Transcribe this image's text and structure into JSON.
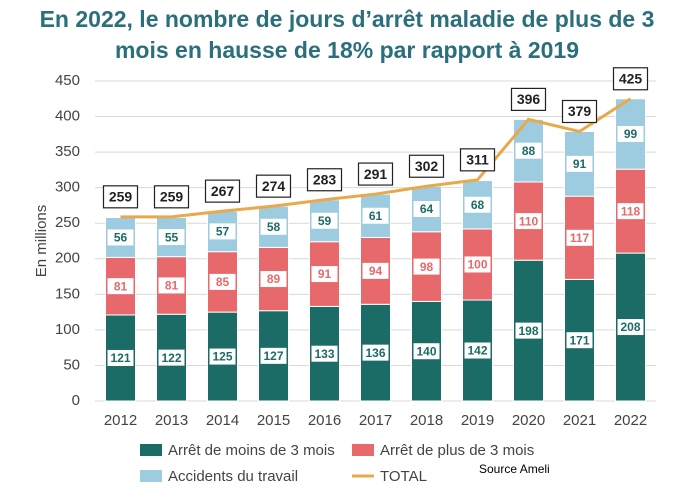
{
  "chart_data": {
    "type": "bar",
    "stacked": true,
    "title": "En 2022, le nombre de jours d’arrêt maladie de plus de 3 mois en hausse de 18% par rapport à 2019",
    "y_label": "En millions",
    "source": "Source Ameli",
    "categories": [
      "2012",
      "2013",
      "2014",
      "2015",
      "2016",
      "2017",
      "2018",
      "2019",
      "2020",
      "2021",
      "2022"
    ],
    "series": [
      {
        "name": "Arrêt de moins de 3 mois",
        "color": "#1b6b67",
        "label_color": "#1b6b67",
        "values": [
          121,
          122,
          125,
          127,
          133,
          136,
          140,
          142,
          198,
          171,
          208
        ]
      },
      {
        "name": "Arrêt de plus de 3 mois",
        "color": "#e8696c",
        "label_color": "#e8696c",
        "values": [
          81,
          81,
          85,
          89,
          91,
          94,
          98,
          100,
          110,
          117,
          118
        ]
      },
      {
        "name": "Accidents du travail",
        "color": "#9dcbe0",
        "label_color": "#1b6b67",
        "values": [
          56,
          55,
          57,
          58,
          59,
          61,
          64,
          68,
          88,
          91,
          99
        ]
      },
      {
        "name": "TOTAL",
        "type": "line",
        "color": "#e9a94a",
        "values": [
          259,
          259,
          267,
          274,
          283,
          291,
          302,
          311,
          396,
          379,
          425
        ]
      }
    ],
    "ylim": [
      0,
      450
    ],
    "yticks": [
      0,
      50,
      100,
      150,
      200,
      250,
      300,
      350,
      400,
      450
    ],
    "grid": true
  }
}
